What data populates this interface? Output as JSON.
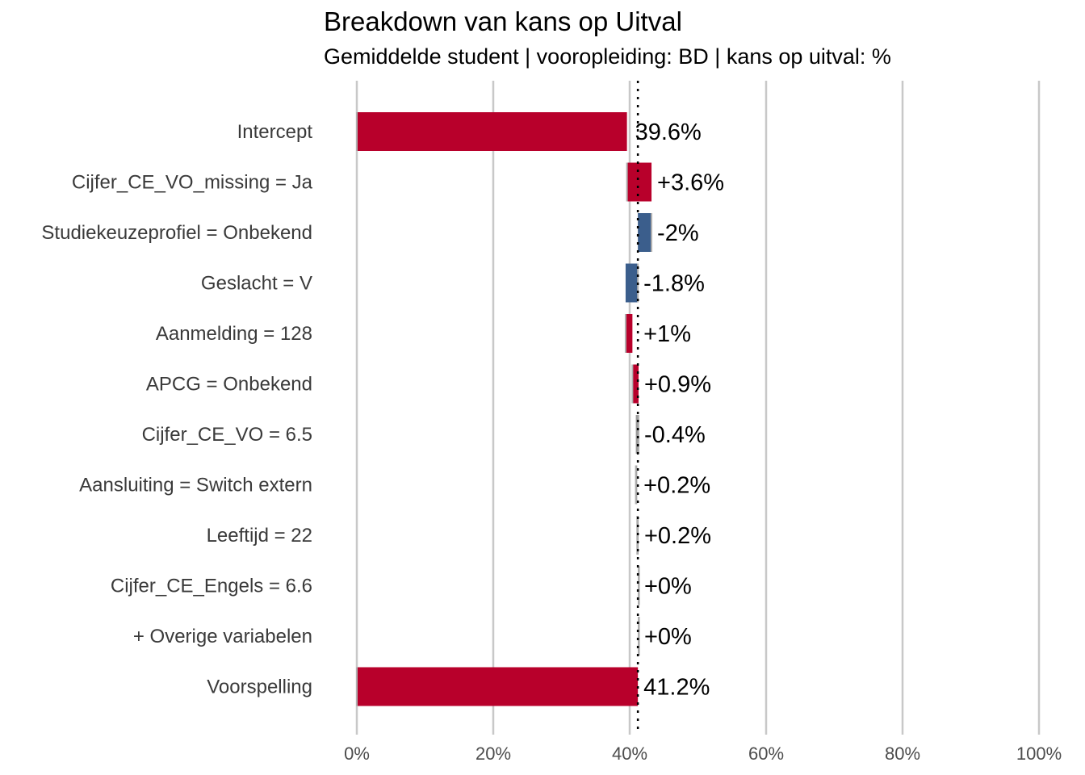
{
  "chart_data": {
    "type": "bar",
    "subtype": "waterfall-breakdown",
    "orientation": "horizontal",
    "title": "Breakdown van kans op Uitval",
    "subtitle": "Gemiddelde student | vooropleiding: BD | kans op uitval: %",
    "categories": [
      "Intercept",
      "Cijfer_CE_VO_missing = Ja",
      "Studiekeuzeprofiel = Onbekend",
      "Geslacht = V",
      "Aanmelding = 128",
      "APCG = Onbekend",
      "Cijfer_CE_VO = 6.5",
      "Aansluiting = Switch extern",
      "Leeftijd = 22",
      "Cijfer_CE_Engels = 6.6",
      "+ Overige variabelen",
      "Voorspelling"
    ],
    "values": [
      39.6,
      3.6,
      -2,
      -1.8,
      1,
      0.9,
      -0.4,
      0.2,
      0.2,
      0,
      0,
      41.2
    ],
    "value_labels": [
      "39.6%",
      "+3.6%",
      "-2%",
      "-1.8%",
      "+1%",
      "+0.9%",
      "-0.4%",
      "+0.2%",
      "+0.2%",
      "+0%",
      "+0%",
      "41.2%"
    ],
    "xlim": [
      0,
      100
    ],
    "x_ticks": [
      0,
      20,
      40,
      60,
      80,
      100
    ],
    "x_tick_labels": [
      "0%",
      "20%",
      "40%",
      "60%",
      "80%",
      "100%"
    ],
    "reference_line": 41.2,
    "grid": "vertical",
    "legend": "none",
    "colors": {
      "positive": "#b8002b",
      "negative": "#3b5e8c",
      "small": "#9a9a9a",
      "grid": "#c8c8c8",
      "reference": "#000000"
    }
  }
}
